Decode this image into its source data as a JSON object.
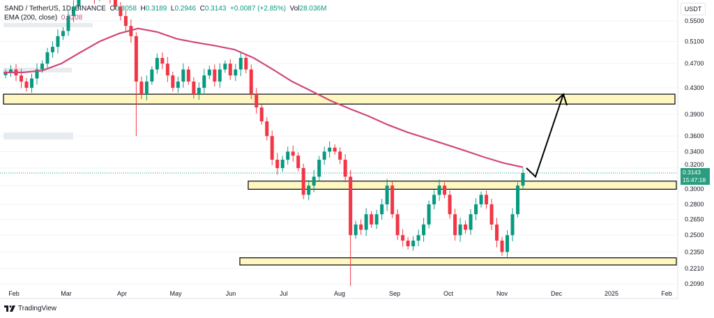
{
  "header": {
    "symbol": "SAND / TetherUS, 1D, BINANCE",
    "o_label": "O",
    "o_value": "0.3058",
    "h_label": "H",
    "h_value": "0.3189",
    "l_label": "L",
    "l_value": "0.2946",
    "c_label": "C",
    "c_value": "0.3143",
    "change": "+0.0087 (+2.85%)",
    "vol_label": "Vol",
    "vol_value": "28.036M",
    "ema_label": "EMA (200, close)",
    "ema_value": "0.3208"
  },
  "currency": "USDT",
  "last_price_badge": {
    "price": "0.3143",
    "countdown": "15:47:18"
  },
  "brand": "TradingView",
  "colors": {
    "up": "#089981",
    "down": "#f23645",
    "ema": "#d0487a",
    "zone": "#fff7c2",
    "badge": "#2a9d7f"
  },
  "chart_data": {
    "type": "candlestick",
    "scale": "log",
    "ylim": [
      0.205,
      0.56
    ],
    "y_ticks": [
      "0.5500",
      "0.5100",
      "0.4700",
      "0.4300",
      "0.3900",
      "0.3600",
      "0.3400",
      "0.3200",
      "0.3000",
      "0.2800",
      "0.2650",
      "0.2500",
      "0.2350",
      "0.2210",
      "0.2090"
    ],
    "x_ticks": [
      "Feb",
      "Mar",
      "Apr",
      "May",
      "Jun",
      "Jul",
      "Aug",
      "Sep",
      "Oct",
      "Nov",
      "Dec",
      "2025",
      "Feb"
    ],
    "closes_every_3_days": [
      0.455,
      0.46,
      0.45,
      0.44,
      0.43,
      0.445,
      0.46,
      0.47,
      0.49,
      0.5,
      0.52,
      0.53,
      0.56,
      0.58,
      0.62,
      0.65,
      0.63,
      0.6,
      0.64,
      0.62,
      0.6,
      0.58,
      0.56,
      0.54,
      0.52,
      0.44,
      0.42,
      0.44,
      0.46,
      0.48,
      0.47,
      0.45,
      0.43,
      0.44,
      0.46,
      0.44,
      0.42,
      0.43,
      0.45,
      0.46,
      0.44,
      0.46,
      0.47,
      0.45,
      0.46,
      0.48,
      0.46,
      0.42,
      0.4,
      0.38,
      0.36,
      0.33,
      0.32,
      0.33,
      0.34,
      0.335,
      0.32,
      0.29,
      0.3,
      0.31,
      0.33,
      0.34,
      0.345,
      0.34,
      0.33,
      0.31,
      0.25,
      0.26,
      0.255,
      0.27,
      0.26,
      0.27,
      0.28,
      0.3,
      0.27,
      0.25,
      0.245,
      0.24,
      0.245,
      0.25,
      0.26,
      0.28,
      0.29,
      0.3,
      0.29,
      0.27,
      0.25,
      0.26,
      0.255,
      0.27,
      0.28,
      0.29,
      0.28,
      0.26,
      0.245,
      0.235,
      0.25,
      0.27,
      0.3,
      0.3143
    ],
    "ema_200": [
      0.455,
      0.455,
      0.458,
      0.47,
      0.49,
      0.51,
      0.525,
      0.535,
      0.528,
      0.515,
      0.508,
      0.502,
      0.495,
      0.48,
      0.46,
      0.44,
      0.425,
      0.41,
      0.398,
      0.387,
      0.375,
      0.365,
      0.357,
      0.349,
      0.341,
      0.333,
      0.326,
      0.321
    ],
    "zones": [
      {
        "low": 0.405,
        "high": 0.42
      },
      {
        "low": 0.296,
        "high": 0.305
      },
      {
        "low": 0.224,
        "high": 0.23
      }
    ],
    "projection_arrow": [
      0.32,
      0.31,
      0.42
    ],
    "last_price": 0.3143
  }
}
